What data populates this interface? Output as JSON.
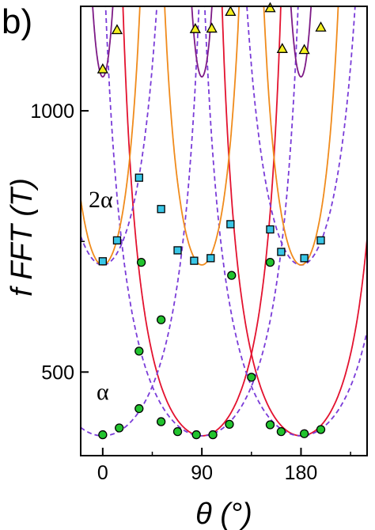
{
  "panel_label": "b)",
  "chart_data": {
    "type": "scatter",
    "title": "",
    "xlabel": "θ (°)",
    "ylabel": "f FFT (T)",
    "xlim": [
      -20,
      240
    ],
    "ylim": [
      340,
      1200
    ],
    "x_ticks": [
      0,
      90,
      180
    ],
    "y_ticks": [
      500,
      1000
    ],
    "grid": false,
    "annotations": [
      {
        "text": "2α",
        "x": 0,
        "y": 800
      },
      {
        "text": "α",
        "x": 0,
        "y": 420
      }
    ],
    "series": [
      {
        "marker": "circle",
        "color": "#22c32e",
        "edge": "#000000",
        "points": [
          [
            0,
            380
          ],
          [
            15,
            393
          ],
          [
            33,
            430
          ],
          [
            33,
            540
          ],
          [
            35,
            710
          ],
          [
            53,
            600
          ],
          [
            53,
            405
          ],
          [
            68,
            386
          ],
          [
            85,
            380
          ],
          [
            100,
            380
          ],
          [
            115,
            400
          ],
          [
            117,
            685
          ],
          [
            135,
            490
          ],
          [
            152,
            710
          ],
          [
            152,
            399
          ],
          [
            162,
            386
          ],
          [
            183,
            382
          ],
          [
            198,
            390
          ]
        ]
      },
      {
        "marker": "square",
        "color": "#39c6e6",
        "edge": "#000000",
        "points": [
          [
            0,
            712
          ],
          [
            13,
            752
          ],
          [
            33,
            872
          ],
          [
            53,
            812
          ],
          [
            68,
            733
          ],
          [
            83,
            713
          ],
          [
            98,
            718
          ],
          [
            116,
            783
          ],
          [
            152,
            773
          ],
          [
            162,
            730
          ],
          [
            183,
            718
          ],
          [
            198,
            752
          ]
        ]
      },
      {
        "marker": "triangle",
        "color": "#f4f020",
        "edge": "#000000",
        "points": [
          [
            0,
            1080
          ],
          [
            13,
            1155
          ],
          [
            84,
            1157
          ],
          [
            99,
            1158
          ],
          [
            116,
            1190
          ],
          [
            152,
            1197
          ],
          [
            163,
            1119
          ],
          [
            183,
            1117
          ],
          [
            198,
            1160
          ]
        ]
      }
    ],
    "curves": [
      {
        "style": "solid",
        "color": "#e3122f",
        "shape": "1/cos",
        "center": 90,
        "min": 378,
        "width": 1.0
      },
      {
        "style": "solid",
        "color": "#e3122f",
        "shape": "1/cos",
        "center": 180,
        "min": 378,
        "width": 1.0
      },
      {
        "style": "dashed",
        "color": "#7a3cd8",
        "shape": "1/cos",
        "center": 90,
        "min": 378,
        "width": 0.82
      },
      {
        "style": "dashed",
        "color": "#7a3cd8",
        "shape": "1/cos",
        "center": 180,
        "min": 378,
        "width": 0.82
      },
      {
        "style": "dashed",
        "color": "#7a3cd8",
        "shape": "1/cos",
        "center": 0,
        "min": 378,
        "width": 0.82
      },
      {
        "style": "dashed",
        "color": "#7a3cd8",
        "shape": "1/cos",
        "center": 0,
        "min": 705,
        "width": 1.1
      },
      {
        "style": "dashed",
        "color": "#7a3cd8",
        "shape": "1/cos",
        "center": 180,
        "min": 705,
        "width": 1.1
      },
      {
        "style": "solid",
        "color": "#f08b1c",
        "shape": "1/cos",
        "center": 90,
        "min": 705,
        "width": 1.6
      },
      {
        "style": "solid",
        "color": "#f08b1c",
        "shape": "1/cos",
        "center": 0,
        "min": 705,
        "width": 1.6
      },
      {
        "style": "solid",
        "color": "#f08b1c",
        "shape": "1/cos",
        "center": 180,
        "min": 705,
        "width": 1.6
      },
      {
        "style": "solid",
        "color": "#7d1a86",
        "shape": "1/cos",
        "center": 0,
        "min": 1065,
        "width": 3.0
      },
      {
        "style": "solid",
        "color": "#7d1a86",
        "shape": "1/cos",
        "center": 90,
        "min": 1065,
        "width": 3.0
      },
      {
        "style": "solid",
        "color": "#7d1a86",
        "shape": "1/cos",
        "center": 180,
        "min": 1065,
        "width": 3.0
      }
    ]
  }
}
